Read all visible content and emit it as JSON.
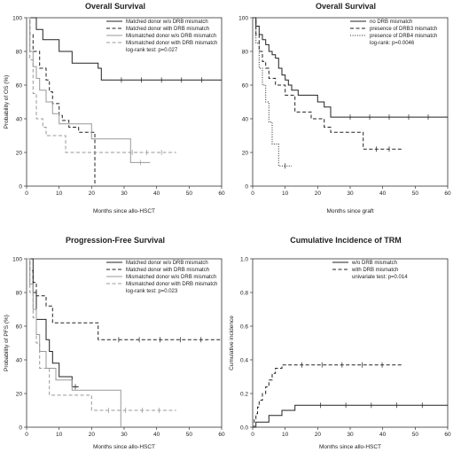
{
  "chart_data": [
    {
      "type": "line",
      "title": "Overall Survival",
      "xlabel": "Months since allo-HSCT",
      "ylabel": "Probability of OS (%)",
      "xlim": [
        0,
        60
      ],
      "ylim": [
        0,
        100
      ],
      "xticks": [
        "0",
        "10",
        "20",
        "30",
        "40",
        "50",
        "60"
      ],
      "yticks": [
        "0",
        "20",
        "40",
        "60",
        "80",
        "100"
      ],
      "grid": false,
      "legend_position": "top-right",
      "annotation": "log-rank test: p=0.027",
      "series": [
        {
          "name": "Matched donor w/o DRB mismatch",
          "style": "solid",
          "color": "#222222",
          "x": [
            0,
            3,
            5,
            10,
            14,
            18,
            20,
            22,
            23,
            60
          ],
          "y": [
            100,
            93,
            87,
            80,
            73,
            73,
            73,
            70,
            63,
            63
          ]
        },
        {
          "name": "Matched donor with DRB mismatch",
          "style": "dashed",
          "color": "#222222",
          "x": [
            0,
            1,
            2,
            4,
            6,
            7,
            8,
            10,
            11,
            13,
            16,
            20,
            21
          ],
          "y": [
            100,
            90,
            80,
            70,
            63,
            56,
            49,
            42,
            39,
            35,
            32,
            32,
            0
          ]
        },
        {
          "name": "Mismatched donor w/o DRB mismatch",
          "style": "solid",
          "color": "#999999",
          "x": [
            0,
            1,
            2,
            3,
            4,
            6,
            8,
            10,
            14,
            20,
            32,
            38
          ],
          "y": [
            100,
            80,
            71,
            64,
            57,
            50,
            43,
            37,
            37,
            28,
            14,
            14
          ]
        },
        {
          "name": "Mismatched donor with DRB mismatch",
          "style": "dashed",
          "color": "#999999",
          "x": [
            0,
            1,
            2,
            3,
            5,
            6,
            9,
            12,
            28,
            46
          ],
          "y": [
            100,
            75,
            55,
            40,
            35,
            30,
            30,
            20,
            20,
            20
          ]
        }
      ]
    },
    {
      "type": "line",
      "title": "Overall Survival",
      "xlabel": "Months since graft",
      "ylabel": "",
      "xlim": [
        0,
        60
      ],
      "ylim": [
        0,
        100
      ],
      "xticks": [
        "0",
        "10",
        "20",
        "30",
        "40",
        "50",
        "60"
      ],
      "yticks": [
        "0",
        "20",
        "40",
        "60",
        "80",
        "100"
      ],
      "grid": false,
      "legend_position": "top-right",
      "annotation": "log-rank: p=0.0046",
      "series": [
        {
          "name": "no DRB mismatch",
          "style": "solid",
          "color": "#222222",
          "x": [
            0,
            1,
            2,
            3,
            4,
            5,
            6,
            7,
            8,
            9,
            10,
            11,
            12,
            14,
            16,
            20,
            22,
            24,
            60
          ],
          "y": [
            100,
            95,
            90,
            87,
            84,
            80,
            78,
            76,
            70,
            66,
            63,
            60,
            57,
            54,
            54,
            50,
            47,
            41,
            41
          ]
        },
        {
          "name": "presence of DRB3 mismatch",
          "style": "dashed",
          "color": "#222222",
          "x": [
            0,
            1,
            2,
            3,
            4,
            5,
            7,
            10,
            13,
            18,
            22,
            24,
            32,
            34,
            46
          ],
          "y": [
            100,
            90,
            80,
            74,
            70,
            64,
            60,
            54,
            44,
            40,
            35,
            32,
            32,
            22,
            22
          ]
        },
        {
          "name": "presence of DRB4 mismatch",
          "style": "dotted",
          "color": "#222222",
          "x": [
            0,
            1,
            2,
            3,
            4,
            5,
            6,
            8,
            12
          ],
          "y": [
            100,
            85,
            70,
            60,
            50,
            38,
            25,
            12,
            12
          ]
        }
      ]
    },
    {
      "type": "line",
      "title": "Progression-Free Survival",
      "xlabel": "Months since allo-HSCT",
      "ylabel": "Probability of PFS (%)",
      "xlim": [
        0,
        60
      ],
      "ylim": [
        0,
        100
      ],
      "xticks": [
        "0",
        "10",
        "20",
        "30",
        "40",
        "50",
        "60"
      ],
      "yticks": [
        "0",
        "20",
        "40",
        "60",
        "80",
        "100"
      ],
      "grid": false,
      "legend_position": "top-right",
      "annotation": "log-rank test: p=0.023",
      "series": [
        {
          "name": "Matched donor w/o DRB mismatch",
          "style": "solid",
          "color": "#222222",
          "x": [
            0,
            2,
            3,
            6,
            7,
            8,
            10,
            14,
            16
          ],
          "y": [
            100,
            80,
            64,
            52,
            45,
            38,
            30,
            24,
            24
          ]
        },
        {
          "name": "Matched donor with DRB mismatch",
          "style": "dashed",
          "color": "#222222",
          "x": [
            0,
            1,
            2,
            3,
            6,
            8,
            15,
            22,
            60
          ],
          "y": [
            100,
            93,
            86,
            78,
            72,
            62,
            62,
            52,
            52
          ]
        },
        {
          "name": "Mismatched donor w/o DRB mismatch",
          "style": "solid",
          "color": "#999999",
          "x": [
            0,
            1,
            2,
            3,
            4,
            6,
            9,
            14,
            22,
            29
          ],
          "y": [
            100,
            85,
            70,
            55,
            45,
            35,
            28,
            22,
            22,
            0
          ]
        },
        {
          "name": "Mismatched donor with DRB mismatch",
          "style": "dashed",
          "color": "#999999",
          "x": [
            0,
            1,
            2,
            3,
            4,
            7,
            20,
            46
          ],
          "y": [
            100,
            80,
            65,
            50,
            35,
            19,
            10,
            10
          ]
        }
      ]
    },
    {
      "type": "line",
      "title": "Cumulative Incidence of TRM",
      "xlabel": "Months since allo-HSCT",
      "ylabel": "Cumulative incidence",
      "xlim": [
        0,
        60
      ],
      "ylim": [
        0,
        1
      ],
      "xticks": [
        "0",
        "10",
        "20",
        "30",
        "40",
        "50",
        "60"
      ],
      "yticks": [
        "0.0",
        "0.2",
        "0.4",
        "0.6",
        "0.8",
        "1.0"
      ],
      "grid": false,
      "legend_position": "top-right",
      "annotation": "univariate test: p=0.014",
      "series": [
        {
          "name": "w/o DRB mismatch",
          "style": "solid",
          "color": "#222222",
          "x": [
            0,
            1,
            2,
            5,
            7,
            9,
            13,
            60
          ],
          "y": [
            0,
            0.03,
            0.03,
            0.07,
            0.07,
            0.1,
            0.13,
            0.13
          ]
        },
        {
          "name": "with DRB mismatch",
          "style": "dashed",
          "color": "#222222",
          "x": [
            0,
            0.5,
            1,
            1.5,
            2,
            3,
            4,
            5,
            6,
            7,
            9,
            46
          ],
          "y": [
            0,
            0.05,
            0.08,
            0.12,
            0.16,
            0.2,
            0.24,
            0.28,
            0.32,
            0.35,
            0.37,
            0.37
          ]
        }
      ]
    }
  ]
}
